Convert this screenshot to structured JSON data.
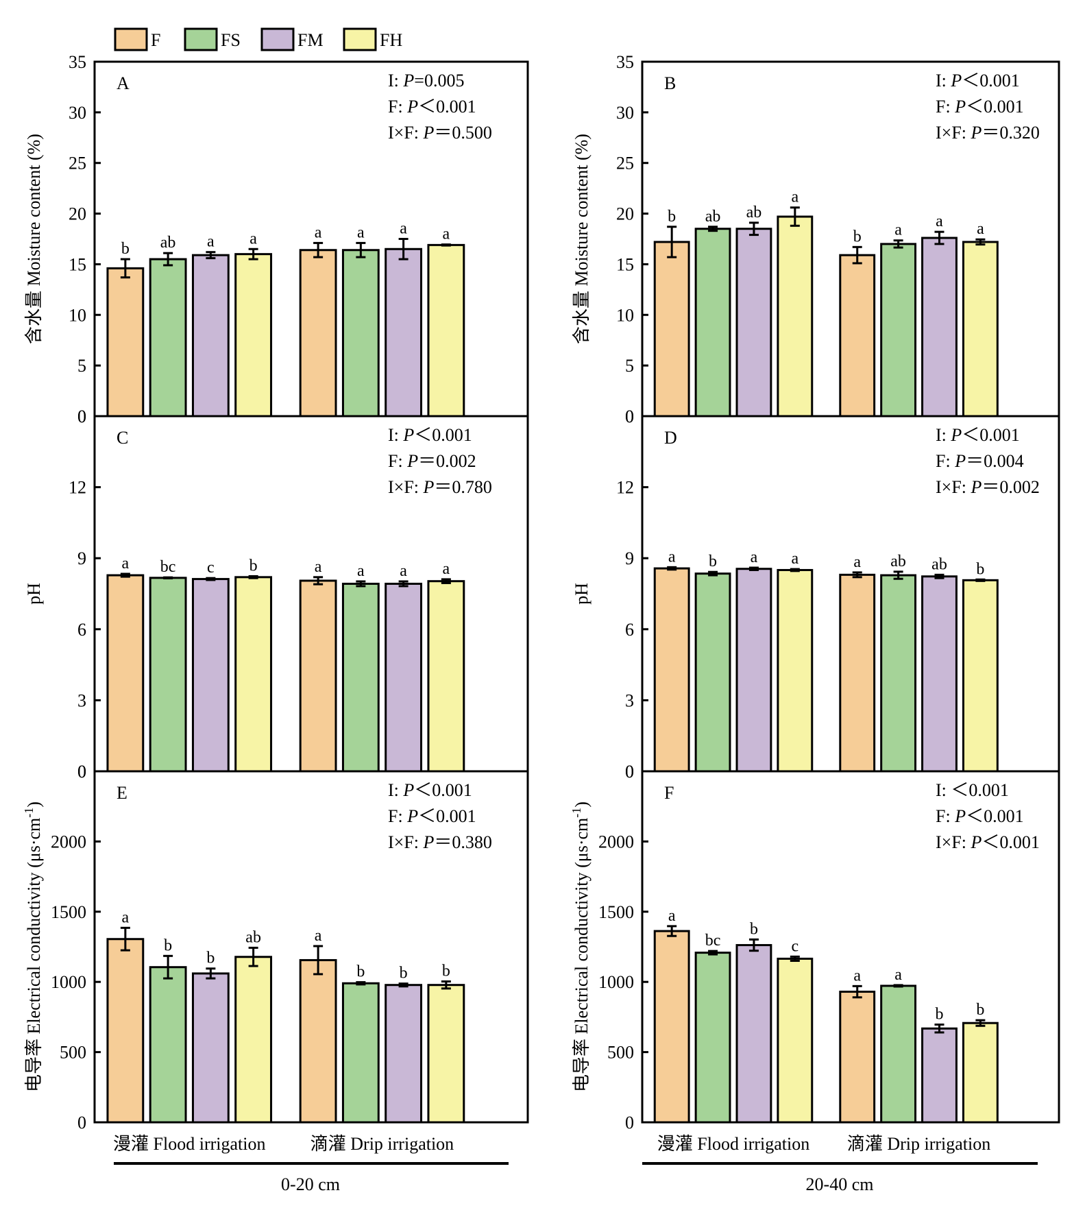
{
  "legend": [
    {
      "label": "F",
      "color": "#F6CD97"
    },
    {
      "label": "FS",
      "color": "#A5D398"
    },
    {
      "label": "FM",
      "color": "#C9B8D6"
    },
    {
      "label": "FH",
      "color": "#F7F4A6"
    }
  ],
  "group_labels": [
    "漫灌 Flood irrigation",
    "滴灌 Drip irrigation"
  ],
  "depth_labels": [
    "0-20 cm",
    "20-40 cm"
  ],
  "chart_data": [
    {
      "panel": "A",
      "type": "bar",
      "depth": "0-20 cm",
      "ylabel": "含水量 Moisture content (%)",
      "ylim": [
        0,
        35
      ],
      "yticks": [
        0,
        5,
        10,
        15,
        20,
        25,
        30,
        35
      ],
      "categories": [
        "漫灌 Flood irrigation",
        "滴灌 Drip irrigation"
      ],
      "stats": [
        "I: P=0.005",
        "F: P<0.001",
        "I×F: P=0.500"
      ],
      "series": [
        {
          "name": "F",
          "values": [
            14.6,
            16.4
          ],
          "errors": [
            0.9,
            0.7
          ],
          "letters": [
            "b",
            "a"
          ]
        },
        {
          "name": "FS",
          "values": [
            15.5,
            16.4
          ],
          "errors": [
            0.6,
            0.7
          ],
          "letters": [
            "ab",
            "a"
          ]
        },
        {
          "name": "FM",
          "values": [
            15.9,
            16.5
          ],
          "errors": [
            0.3,
            1.0
          ],
          "letters": [
            "a",
            "a"
          ]
        },
        {
          "name": "FH",
          "values": [
            16.0,
            16.9
          ],
          "errors": [
            0.5,
            0.05
          ],
          "letters": [
            "a",
            "a"
          ]
        }
      ]
    },
    {
      "panel": "B",
      "type": "bar",
      "depth": "20-40 cm",
      "ylabel": "含水量 Moisture content (%)",
      "ylim": [
        0,
        35
      ],
      "yticks": [
        0,
        5,
        10,
        15,
        20,
        25,
        30,
        35
      ],
      "categories": [
        "漫灌 Flood irrigation",
        "滴灌 Drip irrigation"
      ],
      "stats": [
        "I: P<0.001",
        "F: P<0.001",
        "I×F: P=0.320"
      ],
      "series": [
        {
          "name": "F",
          "values": [
            17.2,
            15.9
          ],
          "errors": [
            1.5,
            0.8
          ],
          "letters": [
            "b",
            "b"
          ]
        },
        {
          "name": "FS",
          "values": [
            18.5,
            17.0
          ],
          "errors": [
            0.2,
            0.35
          ],
          "letters": [
            "ab",
            "a"
          ]
        },
        {
          "name": "FM",
          "values": [
            18.5,
            17.6
          ],
          "errors": [
            0.6,
            0.6
          ],
          "letters": [
            "ab",
            "a"
          ]
        },
        {
          "name": "FH",
          "values": [
            19.7,
            17.2
          ],
          "errors": [
            0.9,
            0.25
          ],
          "letters": [
            "a",
            "a"
          ]
        }
      ]
    },
    {
      "panel": "C",
      "type": "bar",
      "depth": "0-20 cm",
      "ylabel": "pH",
      "ylim": [
        0,
        15
      ],
      "yticks": [
        0,
        3,
        6,
        9,
        12
      ],
      "categories": [
        "漫灌 Flood irrigation",
        "滴灌 Drip irrigation"
      ],
      "stats": [
        "I: P<0.001",
        "F: P=0.002",
        "I×F: P=0.780"
      ],
      "series": [
        {
          "name": "F",
          "values": [
            8.28,
            8.05
          ],
          "errors": [
            0.06,
            0.15
          ],
          "letters": [
            "a",
            "a"
          ]
        },
        {
          "name": "FS",
          "values": [
            8.17,
            7.92
          ],
          "errors": [
            0.02,
            0.1
          ],
          "letters": [
            "bc",
            "a"
          ]
        },
        {
          "name": "FM",
          "values": [
            8.12,
            7.92
          ],
          "errors": [
            0.04,
            0.1
          ],
          "letters": [
            "c",
            "a"
          ]
        },
        {
          "name": "FH",
          "values": [
            8.2,
            8.03
          ],
          "errors": [
            0.04,
            0.08
          ],
          "letters": [
            "b",
            "a"
          ]
        }
      ]
    },
    {
      "panel": "D",
      "type": "bar",
      "depth": "20-40 cm",
      "ylabel": "pH",
      "ylim": [
        0,
        15
      ],
      "yticks": [
        0,
        3,
        6,
        9,
        12
      ],
      "categories": [
        "漫灌 Flood irrigation",
        "滴灌 Drip irrigation"
      ],
      "stats": [
        "I: P<0.001",
        "F: P=0.004",
        "I×F: P=0.002"
      ],
      "series": [
        {
          "name": "F",
          "values": [
            8.57,
            8.3
          ],
          "errors": [
            0.05,
            0.1
          ],
          "letters": [
            "a",
            "a"
          ]
        },
        {
          "name": "FS",
          "values": [
            8.35,
            8.28
          ],
          "errors": [
            0.07,
            0.15
          ],
          "letters": [
            "b",
            "ab"
          ]
        },
        {
          "name": "FM",
          "values": [
            8.55,
            8.23
          ],
          "errors": [
            0.05,
            0.07
          ],
          "letters": [
            "a",
            "ab"
          ]
        },
        {
          "name": "FH",
          "values": [
            8.5,
            8.07
          ],
          "errors": [
            0.04,
            0.03
          ],
          "letters": [
            "a",
            "b"
          ]
        }
      ]
    },
    {
      "panel": "E",
      "type": "bar",
      "depth": "0-20 cm",
      "ylabel": "电导率 Electrical conductivity (μs·cm-1)",
      "ylim": [
        0,
        2500
      ],
      "yticks": [
        0,
        500,
        1000,
        1500,
        2000
      ],
      "categories": [
        "漫灌 Flood irrigation",
        "滴灌 Drip irrigation"
      ],
      "stats": [
        "I: P<0.001",
        "F: P<0.001",
        "I×F: P=0.380"
      ],
      "series": [
        {
          "name": "F",
          "values": [
            1305,
            1155
          ],
          "errors": [
            80,
            100
          ],
          "letters": [
            "a",
            "a"
          ]
        },
        {
          "name": "FS",
          "values": [
            1105,
            990
          ],
          "errors": [
            80,
            8
          ],
          "letters": [
            "b",
            "b"
          ]
        },
        {
          "name": "FM",
          "values": [
            1060,
            978
          ],
          "errors": [
            35,
            10
          ],
          "letters": [
            "b",
            "b"
          ]
        },
        {
          "name": "FH",
          "values": [
            1178,
            978
          ],
          "errors": [
            65,
            25
          ],
          "letters": [
            "ab",
            "b"
          ]
        }
      ]
    },
    {
      "panel": "F",
      "type": "bar",
      "depth": "20-40 cm",
      "ylabel": "电导率 Electrical conductivity (μs·cm-1)",
      "ylim": [
        0,
        2500
      ],
      "yticks": [
        0,
        500,
        1000,
        1500,
        2000
      ],
      "categories": [
        "漫灌 Flood irrigation",
        "滴灌 Drip irrigation"
      ],
      "stats": [
        "I: <0.001",
        "F: P<0.001",
        "I×F: P<0.001"
      ],
      "series": [
        {
          "name": "F",
          "values": [
            1362,
            930
          ],
          "errors": [
            35,
            40
          ],
          "letters": [
            "a",
            "a"
          ]
        },
        {
          "name": "FS",
          "values": [
            1208,
            972
          ],
          "errors": [
            12,
            5
          ],
          "letters": [
            "bc",
            "a"
          ]
        },
        {
          "name": "FM",
          "values": [
            1262,
            668
          ],
          "errors": [
            40,
            28
          ],
          "letters": [
            "b",
            "b"
          ]
        },
        {
          "name": "FH",
          "values": [
            1165,
            707
          ],
          "errors": [
            15,
            20
          ],
          "letters": [
            "c",
            "b"
          ]
        }
      ]
    }
  ]
}
